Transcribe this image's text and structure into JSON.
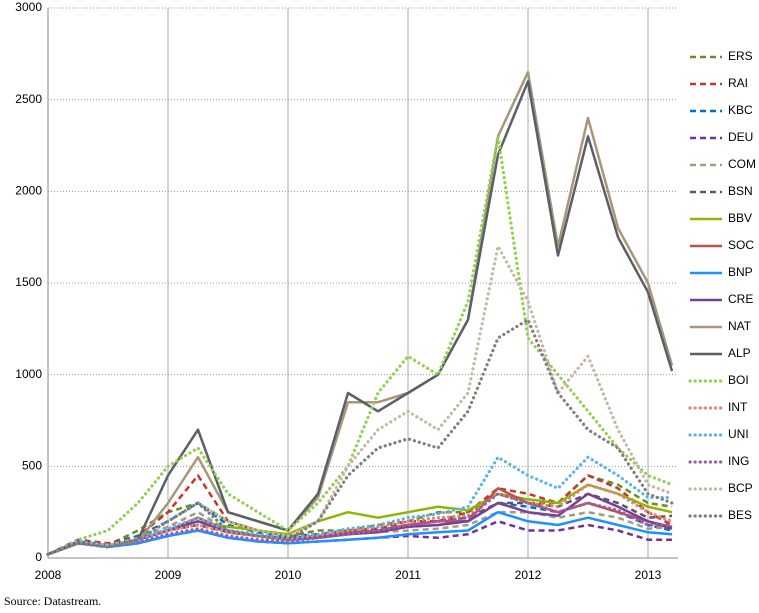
{
  "chart_data": {
    "type": "line",
    "source": "Source: Datastream.",
    "x": [
      2008,
      2008.25,
      2008.5,
      2008.75,
      2009,
      2009.25,
      2009.5,
      2009.75,
      2010,
      2010.25,
      2010.5,
      2010.75,
      2011,
      2011.25,
      2011.5,
      2011.75,
      2012,
      2012.25,
      2012.5,
      2012.75,
      2013,
      2013.2
    ],
    "xlim": [
      2008,
      2013.25
    ],
    "xticks": [
      2008,
      2009,
      2010,
      2011,
      2012,
      2013
    ],
    "ylim": [
      0,
      3000
    ],
    "yticks": [
      0,
      500,
      1000,
      1500,
      2000,
      2500,
      3000
    ],
    "grid": true,
    "legend": "right",
    "series": [
      {
        "name": "ERS",
        "color": "#6b8e23",
        "style": "dashed",
        "values": [
          20,
          90,
          70,
          150,
          250,
          300,
          200,
          150,
          120,
          150,
          150,
          180,
          200,
          250,
          250,
          350,
          300,
          300,
          450,
          400,
          300,
          280
        ]
      },
      {
        "name": "RAI",
        "color": "#c0392b",
        "style": "dashed",
        "values": [
          20,
          100,
          80,
          120,
          250,
          450,
          200,
          150,
          120,
          130,
          150,
          160,
          200,
          200,
          250,
          380,
          350,
          300,
          450,
          380,
          250,
          180
        ]
      },
      {
        "name": "KBC",
        "color": "#0070c0",
        "style": "dashed",
        "values": [
          20,
          90,
          70,
          120,
          200,
          300,
          180,
          140,
          110,
          120,
          130,
          150,
          170,
          180,
          200,
          300,
          280,
          250,
          300,
          250,
          180,
          150
        ]
      },
      {
        "name": "DEU",
        "color": "#7030a0",
        "style": "dashed",
        "values": [
          20,
          80,
          60,
          80,
          120,
          150,
          110,
          90,
          80,
          90,
          100,
          110,
          120,
          110,
          130,
          200,
          150,
          150,
          180,
          150,
          100,
          100
        ]
      },
      {
        "name": "COM",
        "color": "#a89a80",
        "style": "dashed",
        "values": [
          20,
          90,
          70,
          110,
          170,
          250,
          150,
          120,
          100,
          110,
          130,
          140,
          150,
          160,
          180,
          250,
          250,
          220,
          250,
          220,
          160,
          170
        ]
      },
      {
        "name": "BSN",
        "color": "#555a60",
        "style": "dashed",
        "values": [
          20,
          90,
          70,
          100,
          150,
          180,
          140,
          120,
          110,
          130,
          140,
          160,
          180,
          200,
          220,
          300,
          300,
          280,
          350,
          300,
          220,
          230
        ]
      },
      {
        "name": "BBV",
        "color": "#8db600",
        "style": "solid",
        "values": [
          20,
          90,
          70,
          100,
          150,
          200,
          170,
          150,
          130,
          200,
          250,
          220,
          250,
          280,
          260,
          350,
          320,
          300,
          400,
          350,
          280,
          250
        ]
      },
      {
        "name": "SOC",
        "color": "#c0504d",
        "style": "solid",
        "values": [
          20,
          90,
          70,
          100,
          150,
          220,
          150,
          120,
          100,
          120,
          140,
          150,
          180,
          200,
          200,
          380,
          300,
          250,
          300,
          250,
          200,
          170
        ]
      },
      {
        "name": "BNP",
        "color": "#1e90ff",
        "style": "solid",
        "values": [
          20,
          80,
          60,
          80,
          120,
          150,
          110,
          90,
          80,
          90,
          100,
          110,
          130,
          140,
          150,
          250,
          200,
          180,
          220,
          180,
          140,
          130
        ]
      },
      {
        "name": "CRE",
        "color": "#7b3f99",
        "style": "solid",
        "values": [
          20,
          90,
          70,
          100,
          150,
          200,
          140,
          120,
          100,
          110,
          130,
          140,
          170,
          180,
          200,
          300,
          250,
          230,
          350,
          280,
          200,
          160
        ]
      },
      {
        "name": "NAT",
        "color": "#a8967a",
        "style": "solid",
        "values": [
          20,
          80,
          70,
          90,
          300,
          550,
          250,
          200,
          150,
          330,
          850,
          850,
          900,
          1000,
          1300,
          2300,
          2650,
          1700,
          2400,
          1800,
          1500,
          1050
        ]
      },
      {
        "name": "ALP",
        "color": "#5a5f68",
        "style": "solid",
        "values": [
          20,
          80,
          70,
          100,
          450,
          700,
          250,
          200,
          150,
          350,
          900,
          800,
          900,
          1000,
          1300,
          2200,
          2600,
          1650,
          2300,
          1750,
          1450,
          1020
        ]
      },
      {
        "name": "BOI",
        "color": "#92d050",
        "style": "dotted",
        "values": [
          20,
          100,
          150,
          300,
          500,
          600,
          350,
          250,
          150,
          300,
          500,
          900,
          1100,
          1000,
          1400,
          2300,
          1200,
          1000,
          800,
          600,
          450,
          400
        ]
      },
      {
        "name": "INT",
        "color": "#e6827a",
        "style": "dotted",
        "values": [
          20,
          80,
          70,
          100,
          150,
          180,
          140,
          120,
          100,
          120,
          150,
          170,
          200,
          220,
          230,
          350,
          300,
          280,
          400,
          350,
          250,
          200
        ]
      },
      {
        "name": "UNI",
        "color": "#5bb4e8",
        "style": "dotted",
        "values": [
          20,
          90,
          70,
          100,
          160,
          220,
          150,
          130,
          110,
          130,
          160,
          180,
          220,
          240,
          280,
          550,
          450,
          380,
          550,
          450,
          330,
          330
        ]
      },
      {
        "name": "ING",
        "color": "#9b5fa8",
        "style": "dotted",
        "values": [
          20,
          80,
          60,
          90,
          130,
          160,
          120,
          100,
          90,
          110,
          130,
          150,
          180,
          200,
          220,
          350,
          300,
          250,
          300,
          260,
          180,
          180
        ]
      },
      {
        "name": "BCP",
        "color": "#c4b8a4",
        "style": "dotted",
        "values": [
          20,
          80,
          70,
          100,
          200,
          300,
          200,
          150,
          120,
          200,
          500,
          700,
          800,
          700,
          900,
          1700,
          1400,
          900,
          1100,
          700,
          400,
          350
        ]
      },
      {
        "name": "BES",
        "color": "#7f7f7f",
        "style": "dotted",
        "values": [
          20,
          80,
          60,
          100,
          200,
          300,
          150,
          120,
          100,
          200,
          450,
          600,
          650,
          600,
          800,
          1200,
          1300,
          900,
          700,
          600,
          350,
          300
        ]
      }
    ]
  }
}
